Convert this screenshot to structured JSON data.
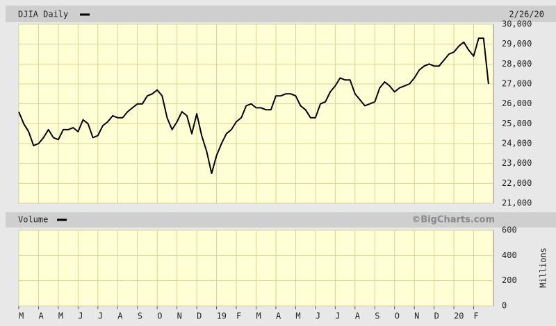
{
  "chart_data": [
    {
      "type": "line",
      "title": "DJIA Daily",
      "date": "2/26/20",
      "color": "#000000",
      "categories": [
        "M",
        null,
        null,
        null,
        "A",
        null,
        null,
        null,
        "M",
        null,
        null,
        null,
        "J",
        null,
        null,
        null,
        "J",
        null,
        null,
        null,
        "A",
        null,
        null,
        null,
        "S",
        null,
        null,
        null,
        "O",
        null,
        null,
        null,
        "N",
        null,
        null,
        null,
        "D",
        null,
        null,
        null,
        "19",
        null,
        null,
        null,
        "F",
        null,
        null,
        null,
        "M",
        null,
        null,
        null,
        "A",
        null,
        null,
        null,
        "M",
        null,
        null,
        null,
        "J",
        null,
        null,
        null,
        "J",
        null,
        null,
        null,
        "A",
        null,
        null,
        null,
        "S",
        null,
        null,
        null,
        "O",
        null,
        null,
        null,
        "N",
        null,
        null,
        null,
        "D",
        null,
        null,
        null,
        "20",
        null,
        null,
        null,
        "F",
        null,
        null,
        null
      ],
      "values": [
        25600,
        25000,
        24600,
        23900,
        24000,
        24300,
        24700,
        24300,
        24200,
        24700,
        24700,
        24800,
        24600,
        25200,
        25000,
        24300,
        24400,
        24900,
        25100,
        25400,
        25300,
        25300,
        25600,
        25800,
        26000,
        26000,
        26400,
        26500,
        26700,
        26400,
        25300,
        24700,
        25100,
        25600,
        25400,
        24500,
        25500,
        24400,
        23600,
        22500,
        23400,
        24000,
        24500,
        24700,
        25100,
        25300,
        25900,
        26000,
        25800,
        25800,
        25700,
        25700,
        26400,
        26400,
        26500,
        26500,
        26400,
        25900,
        25700,
        25300,
        25300,
        26000,
        26100,
        26600,
        26900,
        27300,
        27200,
        27200,
        26500,
        26200,
        25900,
        26000,
        26100,
        26800,
        27100,
        26900,
        26600,
        26800,
        26900,
        27000,
        27300,
        27700,
        27900,
        28000,
        27900,
        27900,
        28200,
        28500,
        28600,
        28900,
        29100,
        28700,
        28400,
        29300,
        29300,
        27000
      ],
      "ylim": [
        21000,
        30000
      ],
      "yticks": [
        {
          "value": 21000,
          "label": "21,000"
        },
        {
          "value": 22000,
          "label": "22,000"
        },
        {
          "value": 23000,
          "label": "23,000"
        },
        {
          "value": 24000,
          "label": "24,000"
        },
        {
          "value": 25000,
          "label": "25,000"
        },
        {
          "value": 26000,
          "label": "26,000"
        },
        {
          "value": 27000,
          "label": "27,000"
        },
        {
          "value": 28000,
          "label": "28,000"
        },
        {
          "value": 29000,
          "label": "29,000"
        },
        {
          "value": 30000,
          "label": "30,000"
        }
      ],
      "grid": true
    },
    {
      "type": "bar",
      "title": "Volume",
      "credit": "©BigCharts.com",
      "y_label": "Millions",
      "ylim": [
        0,
        600
      ],
      "yticks": [
        0,
        200,
        400,
        600
      ],
      "grid": true
    }
  ]
}
